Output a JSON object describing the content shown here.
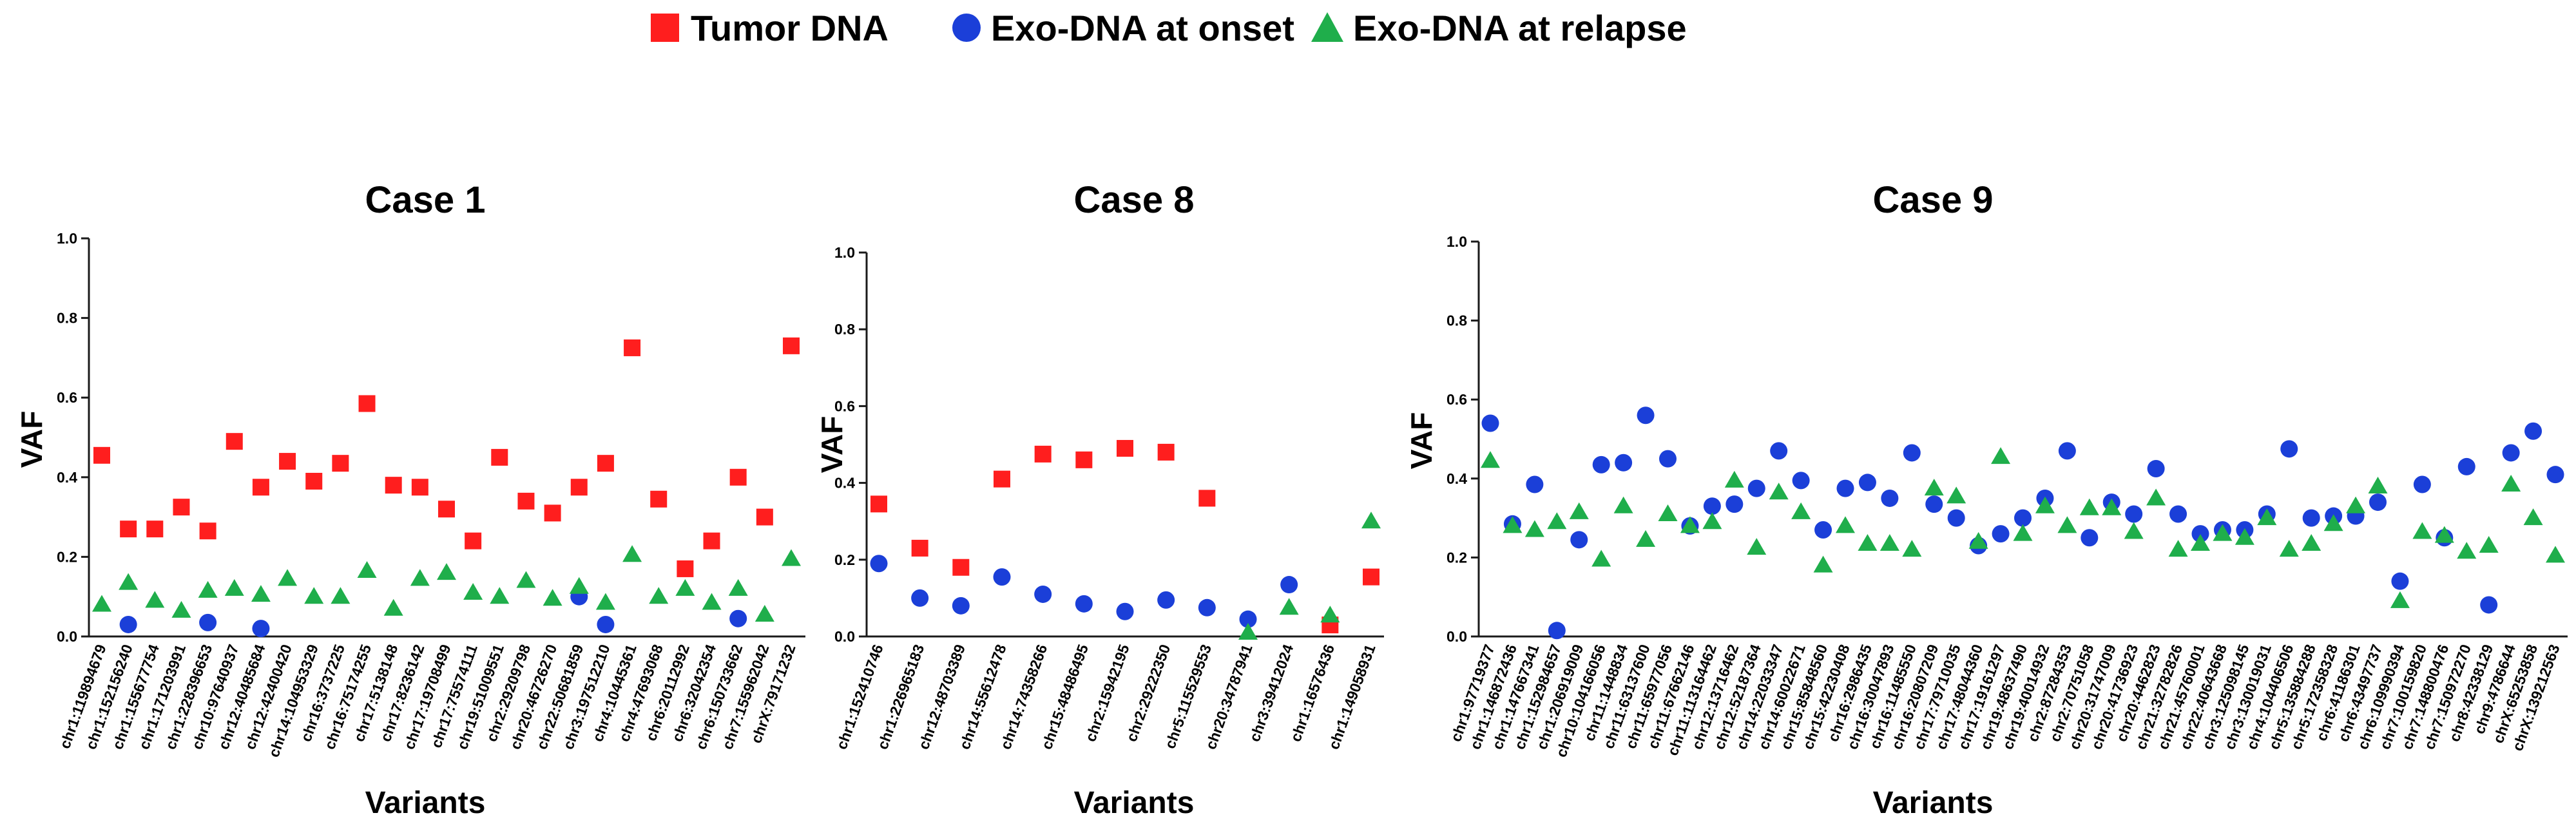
{
  "legend": {
    "tumor": {
      "label": "Tumor DNA",
      "color": "#ff1e1e"
    },
    "onset": {
      "label": "Exo-DNA at onset",
      "color": "#1b3fd8"
    },
    "relapse": {
      "label": "Exo-DNA at relapse",
      "color": "#1fae4b"
    }
  },
  "chart_data": [
    {
      "type": "scatter",
      "title": "Case 1",
      "xlabel": "Variants",
      "ylabel": "VAF",
      "ylim": [
        0,
        1.0
      ],
      "yticks": [
        "0.0",
        "0.2",
        "0.4",
        "0.6",
        "0.8",
        "1.0"
      ],
      "categories": [
        "chr1:119894679",
        "chr1:152156240",
        "chr1:155677754",
        "chr1:171203991",
        "chr1:228396653",
        "chr10:97640937",
        "chr12:40485684",
        "chr12:42400420",
        "chr14:104953329",
        "chr16:3737225",
        "chr16:75174255",
        "chr17:5138148",
        "chr17:8236142",
        "chr17:19708499",
        "chr17:75574111",
        "chr19:51009551",
        "chr2:29209798",
        "chr20:46726270",
        "chr22:50681859",
        "chr3:197512210",
        "chr4:10445361",
        "chr4:47693068",
        "chr6:20112992",
        "chr6:32042354",
        "chr6:150733662",
        "chr7:155962042",
        "chrX:79171232"
      ],
      "values": {
        "tumor": [
          0.455,
          0.27,
          0.27,
          0.325,
          0.265,
          0.49,
          0.375,
          0.44,
          0.39,
          0.435,
          0.585,
          0.38,
          0.375,
          0.32,
          0.24,
          0.45,
          0.34,
          0.31,
          0.375,
          0.435,
          0.725,
          0.345,
          0.17,
          0.24,
          0.4,
          0.3,
          0.73
        ],
        "onset": [
          null,
          0.03,
          null,
          null,
          0.035,
          null,
          0.02,
          null,
          null,
          null,
          null,
          null,
          null,
          null,
          null,
          null,
          null,
          null,
          0.1,
          0.03,
          null,
          null,
          null,
          null,
          0.045,
          null,
          null
        ],
        "relapse": [
          0.08,
          0.135,
          0.09,
          0.065,
          0.115,
          0.12,
          0.105,
          0.145,
          0.1,
          0.1,
          0.165,
          0.07,
          0.145,
          0.16,
          0.11,
          0.1,
          0.14,
          0.095,
          0.125,
          0.085,
          0.205,
          0.1,
          0.12,
          0.085,
          0.12,
          0.055,
          0.195
        ]
      }
    },
    {
      "type": "scatter",
      "title": "Case 8",
      "xlabel": "Variants",
      "ylabel": "VAF",
      "ylim": [
        0,
        1.0
      ],
      "yticks": [
        "0.0",
        "0.2",
        "0.4",
        "0.6",
        "0.8",
        "1.0"
      ],
      "categories": [
        "chr1:152410746",
        "chr1:226965183",
        "chr12:48703389",
        "chr14:55612478",
        "chr14:74358266",
        "chr15:48486495",
        "chr2:15942195",
        "chr2:29222350",
        "chr5:115529553",
        "chr20:34787941",
        "chr3:39412024",
        "chr1:16576436",
        "chr1:149058931"
      ],
      "values": {
        "tumor": [
          0.345,
          0.23,
          0.18,
          0.41,
          0.475,
          0.46,
          0.49,
          0.48,
          0.36,
          null,
          null,
          0.03,
          0.155
        ],
        "onset": [
          0.19,
          0.1,
          0.08,
          0.155,
          0.11,
          0.085,
          0.065,
          0.095,
          0.075,
          0.045,
          0.135,
          null,
          null
        ],
        "relapse": [
          null,
          null,
          null,
          null,
          null,
          null,
          null,
          null,
          null,
          0.01,
          0.075,
          0.055,
          0.3
        ]
      }
    },
    {
      "type": "scatter",
      "title": "Case 9",
      "xlabel": "Variants",
      "ylabel": "VAF",
      "ylim": [
        0,
        1.0
      ],
      "yticks": [
        "0.0",
        "0.2",
        "0.4",
        "0.6",
        "0.8",
        "1.0"
      ],
      "categories": [
        "chr1:97719377",
        "chr1:146872436",
        "chr1:147667341",
        "chr1:152984657",
        "chr1:206919009",
        "chr10:104166056",
        "chr11:1448834",
        "chr11:63137600",
        "chr11:65977056",
        "chr11:67662146",
        "chr11:113164462",
        "chr12:13716462",
        "chr12:52187364",
        "chr14:22033347",
        "chr14:60022671",
        "chr15:85848560",
        "chr15:42230408",
        "chr16:2986435",
        "chr16:30047893",
        "chr16:11485550",
        "chr16:20807209",
        "chr17:79710035",
        "chr17:48044360",
        "chr17:19161297",
        "chr19:48637490",
        "chr19:40014932",
        "chr2:87284353",
        "chr2:70751058",
        "chr20:31747009",
        "chr20:41736923",
        "chr20:4462823",
        "chr21:32782826",
        "chr21:45760001",
        "chr22:40643668",
        "chr3:125098145",
        "chr3:130019031",
        "chr4:104406506",
        "chr5:135884288",
        "chr5:172358328",
        "chr6:41186301",
        "chr6:43497737",
        "chr6:109990394",
        "chr7:100159820",
        "chr7:148800476",
        "chr7:150972270",
        "chr8:42338129",
        "chr9:4786644",
        "chrX:65253858",
        "chrX:139212563"
      ],
      "values": {
        "onset": [
          0.54,
          0.285,
          0.385,
          0.015,
          0.245,
          0.435,
          0.44,
          0.56,
          0.45,
          0.28,
          0.33,
          0.335,
          0.375,
          0.47,
          0.395,
          0.27,
          0.375,
          0.39,
          0.35,
          0.465,
          0.335,
          0.3,
          0.23,
          0.26,
          0.3,
          0.35,
          0.47,
          0.25,
          0.34,
          0.31,
          0.425,
          0.31,
          0.26,
          0.27,
          0.27,
          0.31,
          0.475,
          0.3,
          0.305,
          0.305,
          0.34,
          0.14,
          0.385,
          0.25,
          0.43,
          0.08,
          0.465,
          0.52,
          0.41
        ],
        "relapse": [
          0.445,
          0.28,
          0.27,
          0.29,
          0.315,
          0.195,
          0.33,
          0.245,
          0.31,
          0.28,
          0.29,
          0.395,
          0.225,
          0.365,
          0.315,
          0.18,
          0.28,
          0.235,
          0.235,
          0.22,
          0.375,
          0.355,
          0.24,
          0.455,
          0.26,
          0.33,
          0.28,
          0.325,
          0.325,
          0.265,
          0.35,
          0.22,
          0.235,
          0.26,
          0.25,
          0.3,
          0.22,
          0.235,
          0.285,
          0.33,
          0.38,
          0.09,
          0.265,
          0.255,
          0.215,
          0.23,
          0.385,
          0.3,
          0.205
        ]
      }
    }
  ]
}
